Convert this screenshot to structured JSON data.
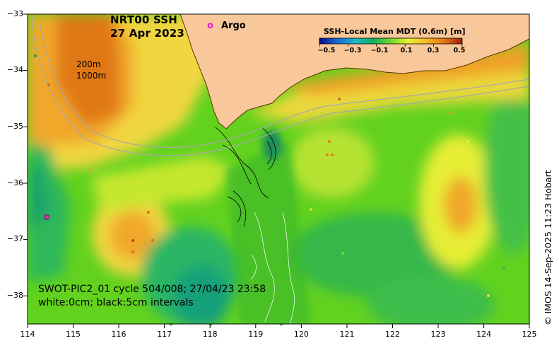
{
  "map": {
    "title_line1": "NRT00 SSH",
    "title_line2": "27 Apr 2023",
    "legend_argo_symbol": "o",
    "legend_argo_label": "Argo",
    "depth_label_1": "200m",
    "depth_label_2": "1000m",
    "swot_line1": "SWOT-PIC2_01 cycle 504/008; 27/04/23 23:58",
    "swot_line2": "white:0cm; black:5cm intervals",
    "credit": "© IMOS 14-Sep-2025 11:23 Hobart",
    "extent": {
      "lon": [
        114,
        125
      ],
      "lat": [
        -38.5,
        -33
      ]
    }
  },
  "colorbar": {
    "title": "SSH-Local Mean MDT (0.6m) [m]",
    "range": [
      -0.5,
      0.5
    ],
    "ticks": [
      "−0.5",
      "−0.3",
      "−0.1",
      "0.1",
      "0.3",
      "0.5"
    ]
  },
  "axes": {
    "x_ticks": [
      "114",
      "115",
      "116",
      "117",
      "118",
      "119",
      "120",
      "121",
      "122",
      "123",
      "124",
      "125"
    ],
    "y_ticks": [
      "−33",
      "−34",
      "−35",
      "−36",
      "−37",
      "−38"
    ]
  },
  "colors": {
    "land": "#f9c89a",
    "bathymetry": "#a8a8a8",
    "argo": "#e01ae0",
    "coast": "#5a3000"
  }
}
